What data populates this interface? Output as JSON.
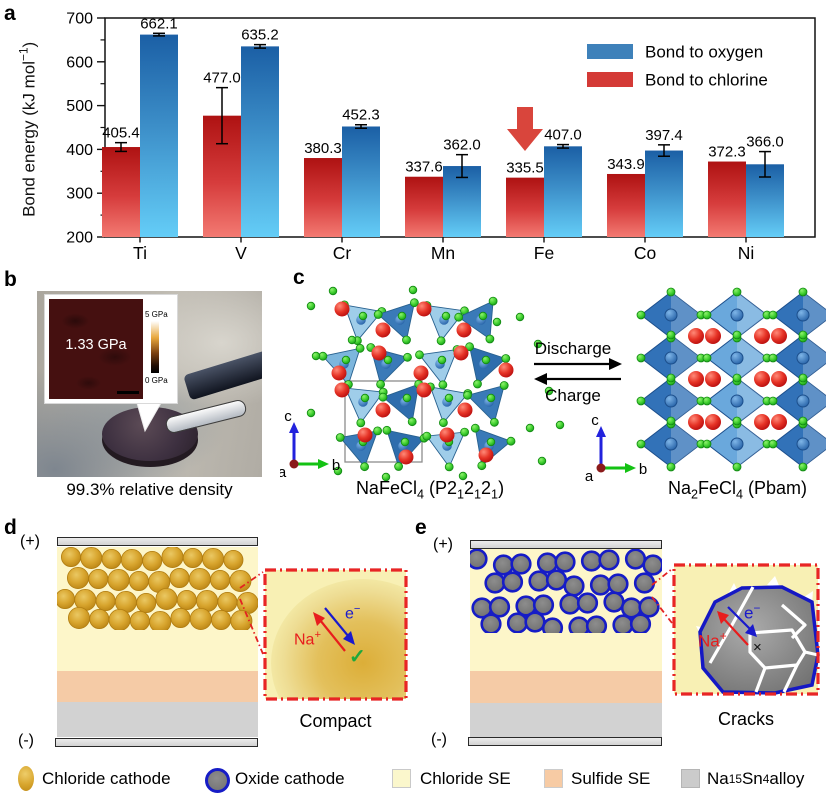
{
  "panel_labels": {
    "a": "a",
    "b": "b",
    "c": "c",
    "d": "d",
    "e": "e"
  },
  "colors": {
    "bar_red_top": "#ae1212",
    "bar_red_bottom": "#f37a72",
    "bar_blue_top": "#1b5fa5",
    "bar_blue_bottom": "#64cdf7",
    "legend_blue": "#3e81ba",
    "legend_red": "#d43a36",
    "arrow_red": "#d9453c",
    "chloride_cathode": "#d8a62e",
    "oxide_cathode": "#7c7c7c",
    "oxide_ring": "#161cc6",
    "chloride_se": "#fdf6c9",
    "sulfide_se": "#f5cba6",
    "alloy": "#d2d2d2",
    "na_sphere": "#d01818",
    "cl_sphere": "#3ecf2e",
    "fe_sphere": "#2f74b8"
  },
  "chart_data": {
    "type": "bar",
    "categories": [
      "Ti",
      "V",
      "Cr",
      "Mn",
      "Fe",
      "Co",
      "Ni"
    ],
    "series": [
      {
        "name": "Bond to chlorine",
        "values": [
          405.4,
          477.0,
          380.3,
          337.6,
          335.5,
          343.9,
          372.3
        ],
        "errors": [
          10,
          64,
          0,
          0,
          0,
          0,
          0
        ]
      },
      {
        "name": "Bond to oxygen",
        "values": [
          662.1,
          635.2,
          452.3,
          362.0,
          407.0,
          397.4,
          366.0
        ],
        "errors": [
          3,
          4,
          4,
          26,
          4,
          13,
          29
        ]
      }
    ],
    "ylabel_rich": [
      [
        "Bond energy (kJ mol",
        ""
      ],
      [
        "−1",
        "sup"
      ],
      [
        ")",
        ""
      ]
    ],
    "ylim": [
      200,
      700
    ],
    "yticks": [
      200,
      300,
      400,
      500,
      600,
      700
    ],
    "legend_position": "upper right",
    "grid": false,
    "annotation": {
      "type": "down-arrow",
      "target_category": "Fe",
      "target_series": "Bond to chlorine"
    }
  },
  "panel_b": {
    "inset_value": "1.33 GPa",
    "scale_top": "5 GPa",
    "scale_bottom": "0 GPa",
    "caption": "99.3% relative density"
  },
  "panel_c": {
    "discharge": "Discharge",
    "charge": "Charge",
    "axis_left": {
      "a": "a",
      "b": "b",
      "c": "c"
    },
    "axis_right": {
      "a": "a",
      "b": "b",
      "c": "c"
    },
    "left_caption": [
      [
        "NaFeCl",
        ""
      ],
      [
        "4",
        "sub"
      ],
      [
        " (P2",
        ""
      ],
      [
        "1",
        "sub"
      ],
      [
        "2",
        ""
      ],
      [
        "1",
        "sub"
      ],
      [
        "2",
        ""
      ],
      [
        "1",
        "sub"
      ],
      [
        ")",
        ""
      ]
    ],
    "right_caption": [
      [
        "Na",
        ""
      ],
      [
        "2",
        "sub"
      ],
      [
        "FeCl",
        ""
      ],
      [
        "4",
        "sub"
      ],
      [
        " (Pbam)",
        ""
      ]
    ]
  },
  "panel_d": {
    "plus": "(+)",
    "minus": "(-)",
    "na_ion": [
      [
        "Na",
        ""
      ],
      [
        "+",
        "sup"
      ]
    ],
    "electron": [
      [
        "e",
        ""
      ],
      [
        "−",
        "sup"
      ]
    ],
    "check": "✓",
    "label": "Compact"
  },
  "panel_e": {
    "plus": "(+)",
    "minus": "(-)",
    "na_ion": [
      [
        "Na",
        ""
      ],
      [
        "+",
        "sup"
      ]
    ],
    "electron": [
      [
        "e",
        ""
      ],
      [
        "−",
        "sup"
      ]
    ],
    "cross": "×",
    "label": "Cracks"
  },
  "legend": {
    "items": [
      {
        "name": "chloride-cathode",
        "label": [
          [
            "Chloride cathode",
            ""
          ]
        ]
      },
      {
        "name": "oxide-cathode",
        "label": [
          [
            "Oxide cathode",
            ""
          ]
        ]
      },
      {
        "name": "chloride-se",
        "label": [
          [
            "Chloride SE",
            ""
          ]
        ]
      },
      {
        "name": "sulfide-se",
        "label": [
          [
            "Sulfide SE",
            ""
          ]
        ]
      },
      {
        "name": "na15sn4-alloy",
        "label": [
          [
            "Na",
            ""
          ],
          [
            "15",
            "sub"
          ],
          [
            "Sn",
            ""
          ],
          [
            "4",
            "sub"
          ],
          [
            " alloy",
            ""
          ]
        ]
      }
    ]
  }
}
